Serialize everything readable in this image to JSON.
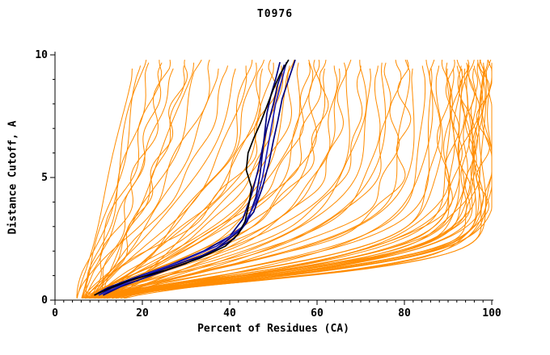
{
  "figure": {
    "title": "T0976"
  },
  "chart_data": {
    "type": "line",
    "title": "T0976",
    "xlabel": "Percent of Residues (CA)",
    "ylabel": "Distance Cutoff, A",
    "xlim": [
      0,
      100
    ],
    "ylim": [
      0,
      10
    ],
    "x_major_ticks": [
      0,
      20,
      40,
      60,
      80,
      100
    ],
    "x_tick_labels": [
      "0",
      "20",
      "40",
      "60",
      "80",
      "100"
    ],
    "x_minor_step": 2,
    "y_major_ticks": [
      0,
      5,
      10
    ],
    "y_tick_labels": [
      "0",
      "5",
      "10"
    ],
    "y_minor_step": 1,
    "grid": false,
    "legend": "none",
    "colors": {
      "ensemble": "#FF8C00",
      "highlight_navy": "#000080",
      "highlight_blue": "#2222BB",
      "highlight_black": "#000000",
      "axis": "#000000",
      "background": "#FFFFFF"
    },
    "ensemble_curves": [
      [
        5,
        18,
        0.9,
        1.2
      ],
      [
        6,
        20,
        0.8,
        1.2
      ],
      [
        7,
        22,
        0.85,
        1.3
      ],
      [
        5,
        24,
        0.7,
        1.2
      ],
      [
        8,
        26,
        0.75,
        1.25
      ],
      [
        6,
        28,
        0.8,
        1.3
      ],
      [
        9,
        30,
        0.6,
        1.2
      ],
      [
        7,
        32,
        0.65,
        1.3
      ],
      [
        8,
        34,
        0.7,
        1.2
      ],
      [
        6,
        36,
        0.55,
        1.3
      ],
      [
        9,
        38,
        0.6,
        1.25
      ],
      [
        7,
        40,
        0.5,
        1.3
      ],
      [
        10,
        25,
        0.9,
        1.2
      ],
      [
        11,
        30,
        0.7,
        1.25
      ],
      [
        5,
        21,
        1.0,
        1.2
      ],
      [
        6,
        42,
        0.45,
        1.3
      ],
      [
        8,
        44,
        0.42,
        1.3
      ],
      [
        7,
        46,
        0.4,
        1.35
      ],
      [
        9,
        48,
        0.38,
        1.3
      ],
      [
        6,
        50,
        0.36,
        1.4
      ],
      [
        10,
        52,
        0.34,
        1.3
      ],
      [
        8,
        54,
        0.32,
        1.35
      ],
      [
        7,
        56,
        0.3,
        1.4
      ],
      [
        9,
        58,
        0.3,
        1.35
      ],
      [
        11,
        60,
        0.28,
        1.4
      ],
      [
        6,
        62,
        0.28,
        1.35
      ],
      [
        8,
        64,
        0.26,
        1.4
      ],
      [
        10,
        66,
        0.26,
        1.35
      ],
      [
        7,
        68,
        0.25,
        1.4
      ],
      [
        9,
        70,
        0.24,
        1.45
      ],
      [
        12,
        72,
        0.24,
        1.4
      ],
      [
        8,
        74,
        0.22,
        1.45
      ],
      [
        6,
        76,
        0.22,
        1.4
      ],
      [
        10,
        78,
        0.21,
        1.45
      ],
      [
        9,
        80,
        0.2,
        1.5
      ],
      [
        7,
        82,
        0.2,
        1.45
      ],
      [
        11,
        84,
        0.19,
        1.5
      ],
      [
        13,
        50,
        0.4,
        1.3
      ],
      [
        14,
        55,
        0.36,
        1.35
      ],
      [
        12,
        60,
        0.32,
        1.4
      ],
      [
        15,
        65,
        0.28,
        1.4
      ],
      [
        13,
        70,
        0.26,
        1.45
      ],
      [
        14,
        75,
        0.23,
        1.45
      ],
      [
        12,
        80,
        0.21,
        1.5
      ],
      [
        10,
        45,
        0.42,
        1.3
      ],
      [
        11,
        48,
        0.4,
        1.35
      ],
      [
        9,
        52,
        0.36,
        1.4
      ],
      [
        8,
        58,
        0.32,
        1.4
      ],
      [
        13,
        62,
        0.3,
        1.45
      ],
      [
        15,
        85,
        0.19,
        1.5
      ],
      [
        7,
        86,
        0.18,
        1.5
      ],
      [
        9,
        88,
        0.17,
        1.5
      ],
      [
        8,
        90,
        0.16,
        1.55
      ],
      [
        10,
        92,
        0.15,
        1.5
      ],
      [
        6,
        94,
        0.15,
        1.55
      ],
      [
        11,
        96,
        0.14,
        1.6
      ],
      [
        9,
        98,
        0.13,
        1.55
      ],
      [
        8,
        100,
        0.13,
        1.6
      ],
      [
        10,
        87,
        0.17,
        1.5
      ],
      [
        7,
        89,
        0.16,
        1.55
      ],
      [
        12,
        91,
        0.15,
        1.5
      ],
      [
        9,
        93,
        0.14,
        1.6
      ],
      [
        11,
        95,
        0.14,
        1.55
      ],
      [
        8,
        97,
        0.13,
        1.6
      ],
      [
        10,
        99,
        0.12,
        1.6
      ],
      [
        13,
        90,
        0.16,
        1.5
      ],
      [
        6,
        92,
        0.15,
        1.55
      ],
      [
        9,
        94,
        0.14,
        1.6
      ],
      [
        12,
        96,
        0.13,
        1.55
      ],
      [
        8,
        98,
        0.12,
        1.6
      ],
      [
        14,
        93,
        0.15,
        1.5
      ],
      [
        10,
        95,
        0.14,
        1.55
      ],
      [
        7,
        97,
        0.13,
        1.6
      ],
      [
        11,
        99,
        0.12,
        1.65
      ],
      [
        9,
        91,
        0.16,
        1.5
      ],
      [
        13,
        94,
        0.14,
        1.55
      ],
      [
        8,
        96,
        0.15,
        1.6
      ],
      [
        12,
        98,
        0.13,
        1.6
      ],
      [
        10,
        100,
        0.12,
        1.65
      ],
      [
        15,
        97,
        0.14,
        1.55
      ]
    ],
    "highlight_curves": [
      {
        "name": "model-navy-1",
        "color": "#000080",
        "points": [
          [
            10,
            0.2
          ],
          [
            13,
            0.5
          ],
          [
            19,
            0.9
          ],
          [
            27,
            1.4
          ],
          [
            35,
            1.9
          ],
          [
            41,
            2.5
          ],
          [
            44,
            3.2
          ],
          [
            46,
            4.2
          ],
          [
            47,
            5.2
          ],
          [
            47.5,
            6.0
          ],
          [
            48,
            6.8
          ],
          [
            48.5,
            7.6
          ],
          [
            49.5,
            8.4
          ],
          [
            50.5,
            9.0
          ],
          [
            51.5,
            9.7
          ]
        ]
      },
      {
        "name": "model-navy-2",
        "color": "#000080",
        "points": [
          [
            9,
            0.2
          ],
          [
            12,
            0.5
          ],
          [
            18,
            0.9
          ],
          [
            26,
            1.4
          ],
          [
            34,
            2.0
          ],
          [
            40,
            2.6
          ],
          [
            43,
            3.3
          ],
          [
            45,
            4.3
          ],
          [
            46.5,
            5.3
          ],
          [
            47.5,
            6.2
          ],
          [
            48.5,
            7.0
          ],
          [
            50,
            8.0
          ],
          [
            51,
            8.8
          ],
          [
            52.5,
            9.6
          ]
        ]
      },
      {
        "name": "model-navy-3",
        "color": "#000080",
        "points": [
          [
            11,
            0.2
          ],
          [
            15,
            0.55
          ],
          [
            22,
            1.0
          ],
          [
            30,
            1.5
          ],
          [
            37,
            2.1
          ],
          [
            42,
            2.8
          ],
          [
            45.5,
            3.6
          ],
          [
            47.5,
            4.6
          ],
          [
            49,
            5.6
          ],
          [
            50,
            6.5
          ],
          [
            51,
            7.3
          ],
          [
            52,
            8.2
          ],
          [
            53.5,
            9.0
          ],
          [
            55,
            9.8
          ]
        ]
      },
      {
        "name": "model-blue",
        "color": "#2222BB",
        "points": [
          [
            10,
            0.2
          ],
          [
            14,
            0.5
          ],
          [
            20,
            1.0
          ],
          [
            29,
            1.6
          ],
          [
            37,
            2.2
          ],
          [
            43,
            3.0
          ],
          [
            46,
            4.0
          ],
          [
            47.5,
            5.0
          ],
          [
            48.5,
            6.0
          ],
          [
            49.5,
            7.0
          ],
          [
            50.5,
            8.0
          ],
          [
            52,
            9.0
          ],
          [
            53,
            9.7
          ]
        ]
      },
      {
        "name": "model-black",
        "color": "#000000",
        "points": [
          [
            9,
            0.2
          ],
          [
            12,
            0.45
          ],
          [
            17,
            0.8
          ],
          [
            25,
            1.2
          ],
          [
            33,
            1.7
          ],
          [
            39,
            2.2
          ],
          [
            42,
            2.7
          ],
          [
            43.5,
            3.2
          ],
          [
            44.5,
            4.0
          ],
          [
            45,
            4.6
          ],
          [
            43.8,
            5.3
          ],
          [
            44.2,
            6.0
          ],
          [
            45.5,
            6.6
          ],
          [
            47,
            7.2
          ],
          [
            48.5,
            7.9
          ],
          [
            50,
            8.6
          ],
          [
            51.5,
            9.2
          ],
          [
            53.5,
            9.8
          ]
        ]
      }
    ]
  }
}
